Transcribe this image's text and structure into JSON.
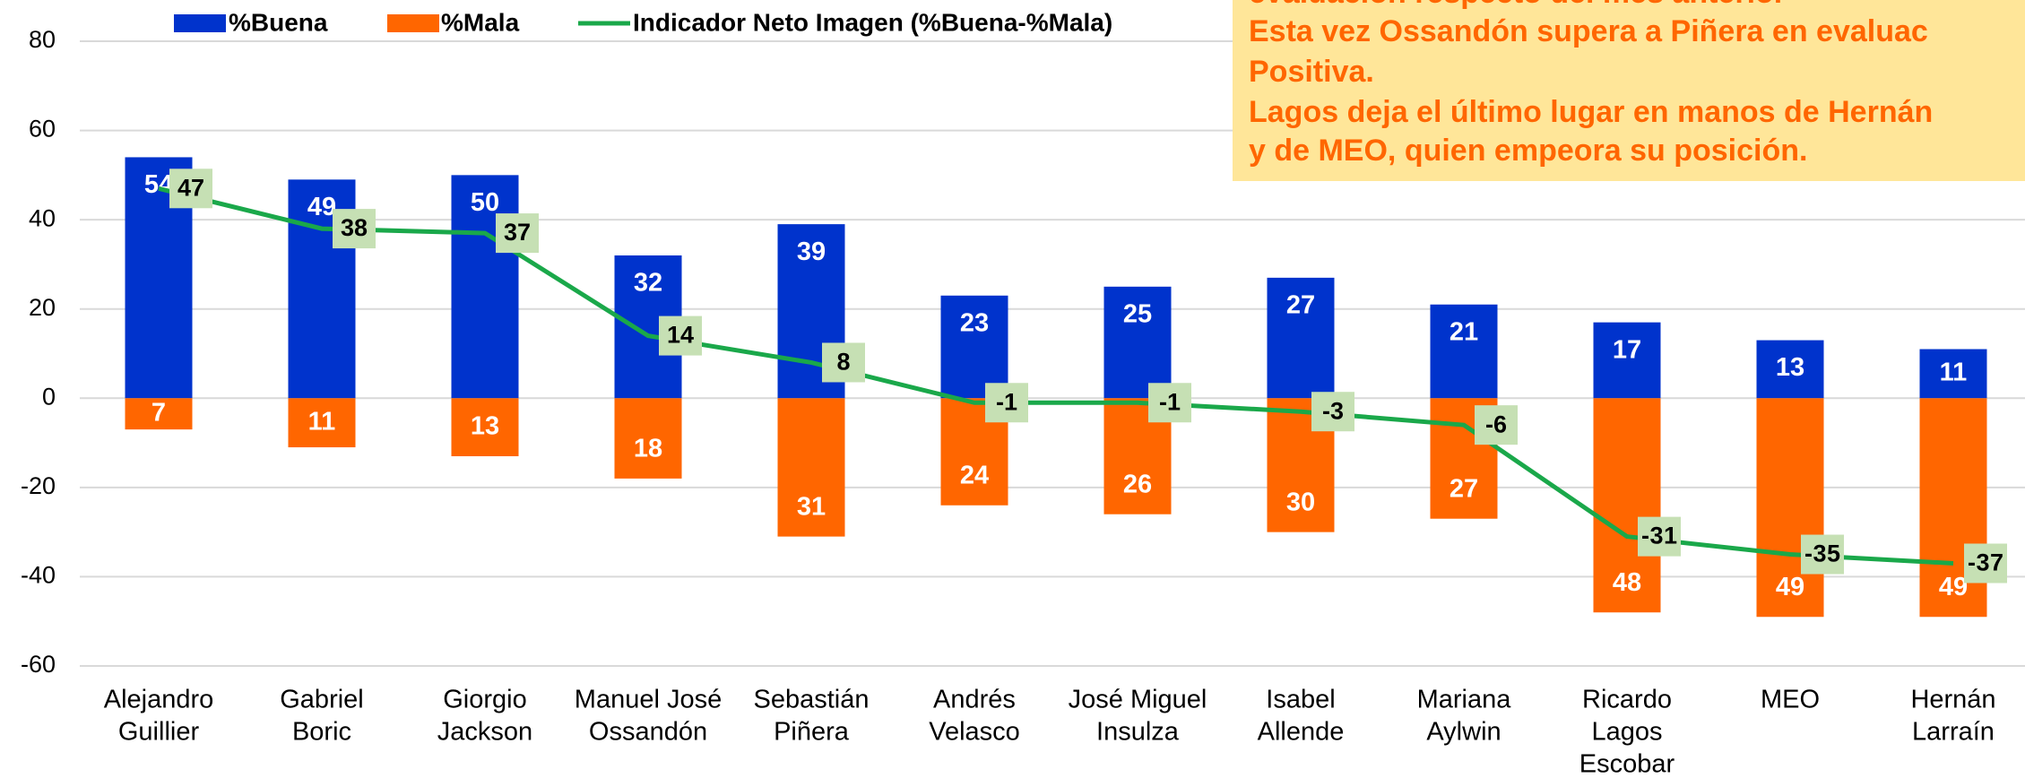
{
  "chart_data": {
    "type": "bar",
    "categories": [
      [
        "Alejandro",
        "Guillier"
      ],
      [
        "Gabriel",
        "Boric"
      ],
      [
        "Giorgio",
        "Jackson"
      ],
      [
        "Manuel José",
        "Ossandón"
      ],
      [
        "Sebastián",
        "Piñera"
      ],
      [
        "Andrés",
        "Velasco"
      ],
      [
        "José Miguel",
        "Insulza"
      ],
      [
        "Isabel",
        "Allende"
      ],
      [
        "Mariana",
        "Aylwin"
      ],
      [
        "Ricardo",
        "Lagos",
        "Escobar"
      ],
      [
        "MEO"
      ],
      [
        "Hernán",
        "Larraín"
      ]
    ],
    "series": [
      {
        "name": "%Buena",
        "color": "#0033cc",
        "values": [
          54,
          49,
          50,
          32,
          39,
          23,
          25,
          27,
          21,
          17,
          13,
          11
        ]
      },
      {
        "name": "%Mala",
        "color": "#ff6600",
        "values": [
          -7,
          -11,
          -13,
          -18,
          -31,
          -24,
          -26,
          -30,
          -27,
          -48,
          -49,
          -49
        ],
        "value_labels": [
          "7",
          "11",
          "13",
          "18",
          "31",
          "24",
          "26",
          "30",
          "27",
          "48",
          "49",
          "49"
        ]
      },
      {
        "name": "Indicador Neto Imagen (%Buena-%Mala)",
        "color": "#1aa84a",
        "type": "line",
        "values": [
          47,
          38,
          37,
          14,
          8,
          -1,
          -1,
          -3,
          -6,
          -31,
          -35,
          -37
        ]
      }
    ],
    "ylim": [
      -60,
      80
    ],
    "yticks": [
      -60,
      -40,
      -20,
      0,
      20,
      40,
      60,
      80
    ],
    "grid": true,
    "annotation": [
      "evaluación respecto del mes anterior",
      "Esta vez Ossandón supera a Piñera en evaluac",
      "Positiva.",
      "Lagos deja el último lugar en manos de Hernán",
      "y de MEO, quien empeora su posición."
    ]
  }
}
